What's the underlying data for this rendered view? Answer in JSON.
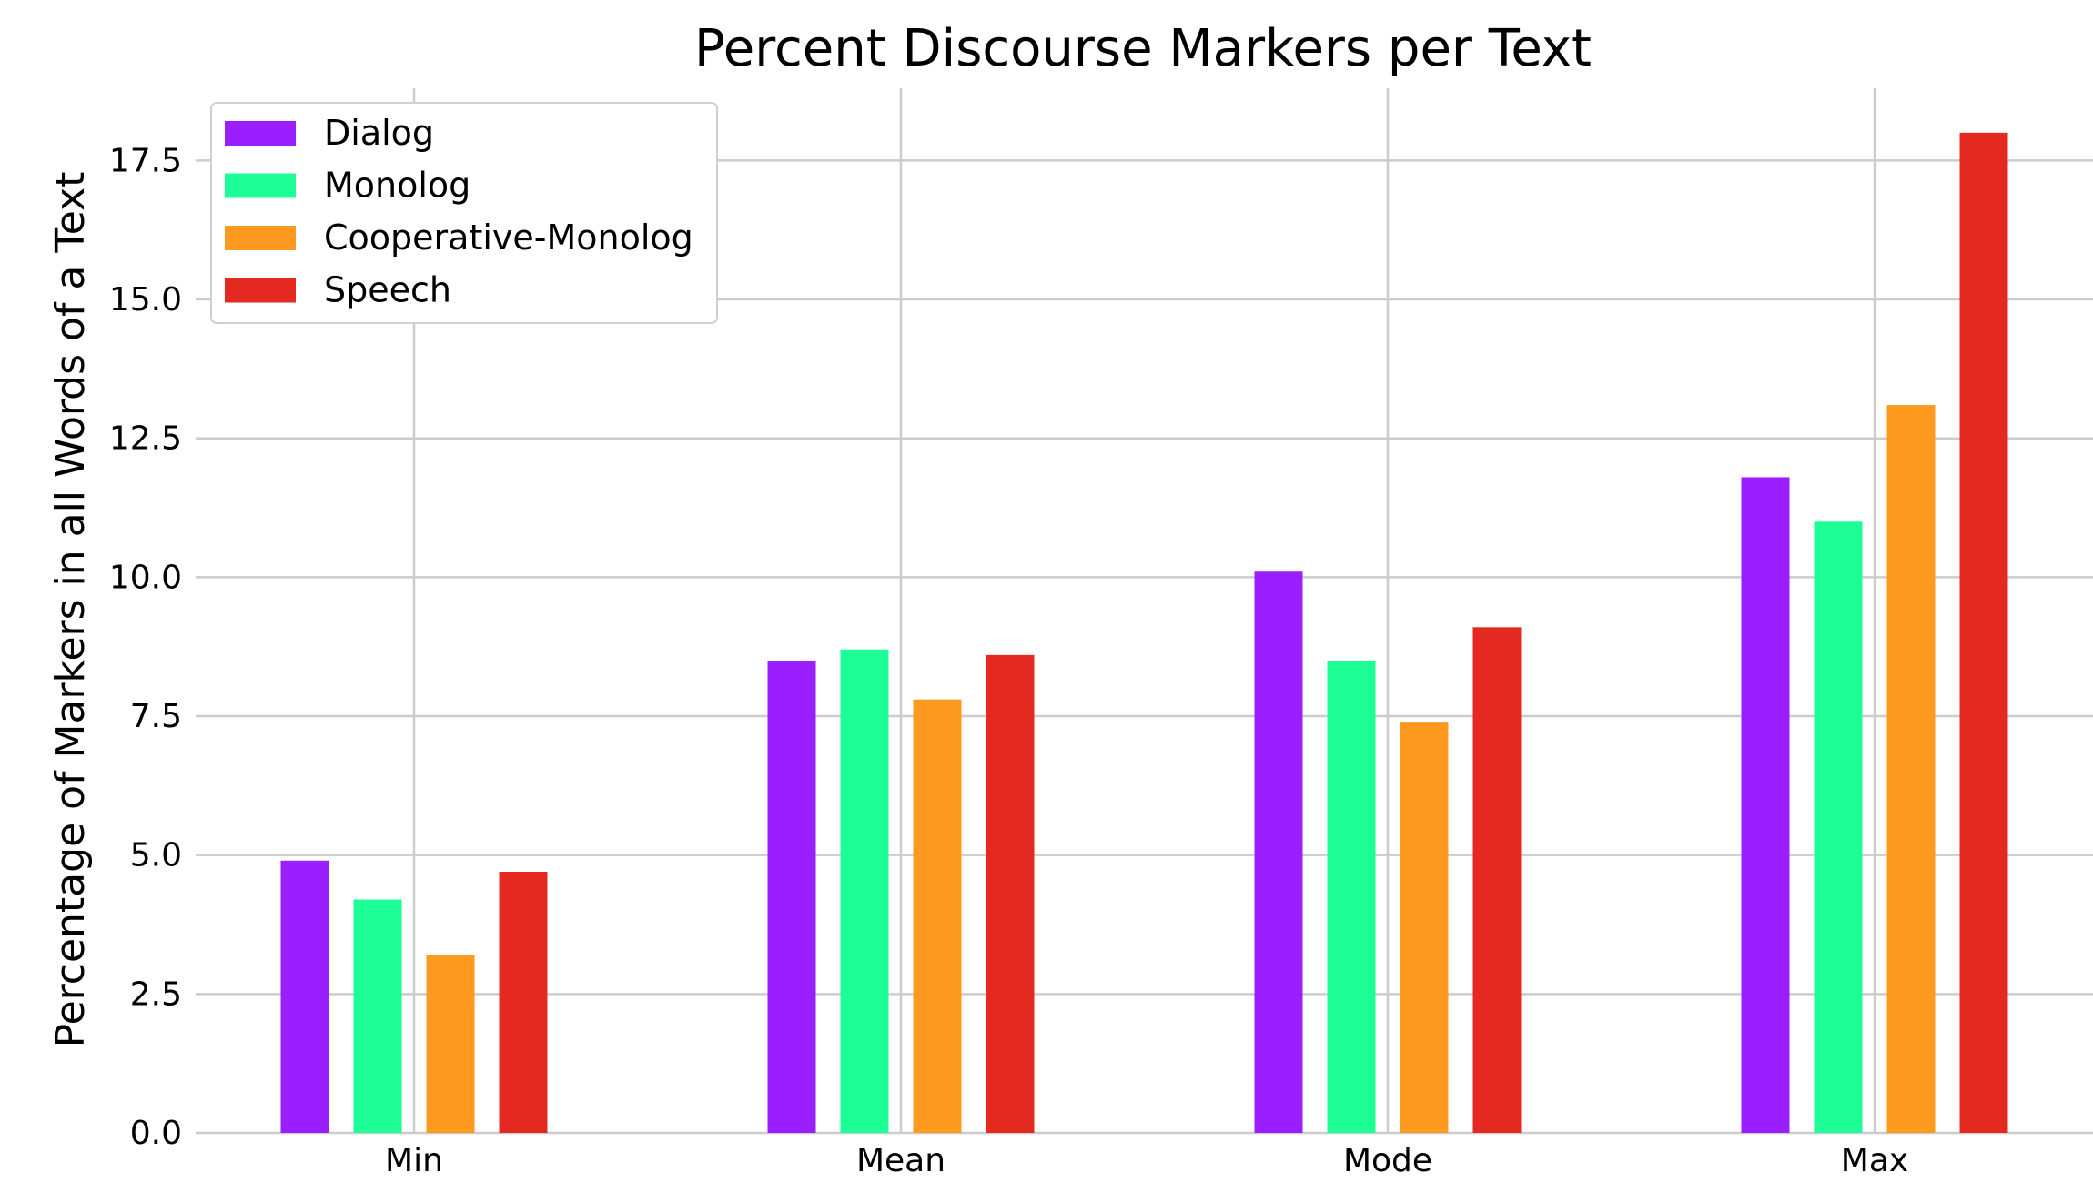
{
  "chart_data": {
    "type": "bar",
    "title": "Percent Discourse Markers per Text",
    "xlabel": "",
    "ylabel": "Percentage of Markers in all Words of a Text",
    "categories": [
      "Min",
      "Mean",
      "Mode",
      "Max"
    ],
    "series": [
      {
        "name": "Dialog",
        "color": "#9b1ffe",
        "values": [
          4.9,
          8.5,
          10.1,
          11.8
        ]
      },
      {
        "name": "Monolog",
        "color": "#1efe96",
        "values": [
          4.2,
          8.7,
          8.5,
          11.0
        ]
      },
      {
        "name": "Cooperative-Monolog",
        "color": "#fe9a1f",
        "values": [
          3.2,
          7.8,
          7.4,
          13.1
        ]
      },
      {
        "name": "Speech",
        "color": "#e42a20",
        "values": [
          4.7,
          8.6,
          9.1,
          18.0
        ]
      }
    ],
    "ylim": [
      0,
      18.8
    ],
    "yticks": [
      "0.0",
      "2.5",
      "5.0",
      "7.5",
      "10.0",
      "12.5",
      "15.0",
      "17.5"
    ],
    "grid": true,
    "legend_position": "top-left"
  }
}
